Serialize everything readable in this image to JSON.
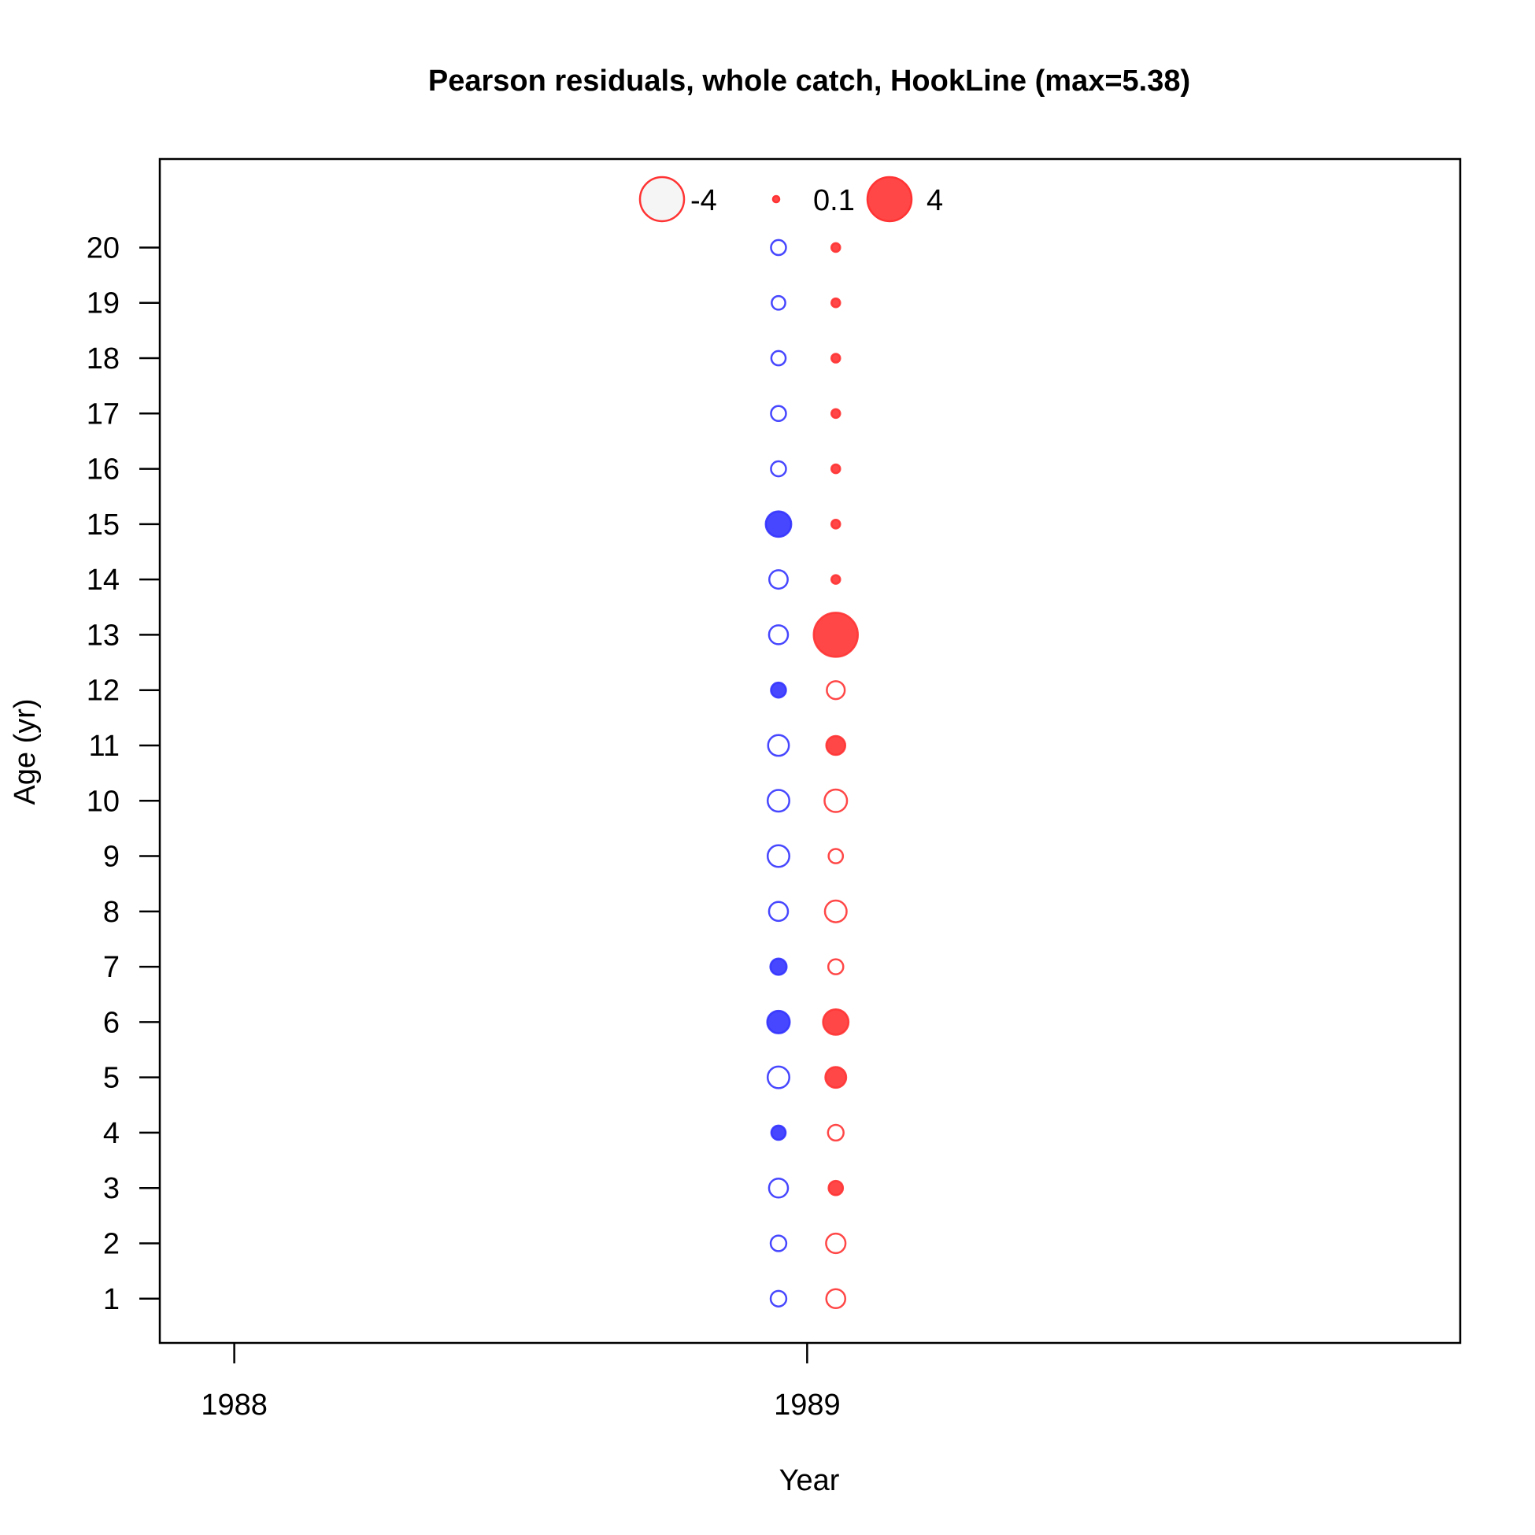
{
  "chart_data": {
    "type": "scatter",
    "subtype": "bubble",
    "title": "Pearson residuals, whole catch, HookLine (max=5.38)",
    "xlabel": "Year",
    "ylabel": "Age (yr)",
    "x_ticks": [
      "1988",
      "1989"
    ],
    "y_ticks": [
      1,
      2,
      3,
      4,
      5,
      6,
      7,
      8,
      9,
      10,
      11,
      12,
      13,
      14,
      15,
      16,
      17,
      18,
      19,
      20
    ],
    "xlim": [
      1987.87,
      1990.14
    ],
    "ylim": [
      0.2,
      21.6
    ],
    "grid": false,
    "max_residual": 5.38,
    "legend": {
      "placement": "top-center",
      "entries": [
        {
          "label": "-4",
          "value": -4,
          "filled": false,
          "color": "#ff3333"
        },
        {
          "label": "0.1",
          "value": 0.1,
          "filled": true,
          "color": "#ff3333"
        },
        {
          "label": "4",
          "value": 4,
          "filled": true,
          "color": "#ff3333"
        }
      ]
    },
    "series": [
      {
        "color": "#3333ff",
        "x": 1988.95,
        "points": [
          {
            "age": 1,
            "residual": -0.5
          },
          {
            "age": 2,
            "residual": -0.5
          },
          {
            "age": 3,
            "residual": -0.8
          },
          {
            "age": 4,
            "residual": 0.4
          },
          {
            "age": 5,
            "residual": -1.1
          },
          {
            "age": 6,
            "residual": 1.2
          },
          {
            "age": 7,
            "residual": 0.55
          },
          {
            "age": 8,
            "residual": -0.8
          },
          {
            "age": 9,
            "residual": -1.1
          },
          {
            "age": 10,
            "residual": -1.1
          },
          {
            "age": 11,
            "residual": -1.0
          },
          {
            "age": 12,
            "residual": 0.45
          },
          {
            "age": 13,
            "residual": -0.8
          },
          {
            "age": 14,
            "residual": -0.75
          },
          {
            "age": 15,
            "residual": 1.6
          },
          {
            "age": 16,
            "residual": -0.45
          },
          {
            "age": 17,
            "residual": -0.45
          },
          {
            "age": 18,
            "residual": -0.4
          },
          {
            "age": 19,
            "residual": -0.35
          },
          {
            "age": 20,
            "residual": -0.45
          }
        ]
      },
      {
        "color": "#ff3333",
        "x": 1989.05,
        "points": [
          {
            "age": 1,
            "residual": -0.8
          },
          {
            "age": 2,
            "residual": -0.85
          },
          {
            "age": 3,
            "residual": 0.4
          },
          {
            "age": 4,
            "residual": -0.5
          },
          {
            "age": 5,
            "residual": 1.0
          },
          {
            "age": 6,
            "residual": 1.6
          },
          {
            "age": 7,
            "residual": -0.45
          },
          {
            "age": 8,
            "residual": -1.1
          },
          {
            "age": 9,
            "residual": -0.4
          },
          {
            "age": 10,
            "residual": -1.2
          },
          {
            "age": 11,
            "residual": 0.8
          },
          {
            "age": 12,
            "residual": -0.7
          },
          {
            "age": 13,
            "residual": 5.38
          },
          {
            "age": 14,
            "residual": 0.1
          },
          {
            "age": 15,
            "residual": 0.1
          },
          {
            "age": 16,
            "residual": 0.1
          },
          {
            "age": 17,
            "residual": 0.1
          },
          {
            "age": 18,
            "residual": 0.1
          },
          {
            "age": 19,
            "residual": 0.1
          },
          {
            "age": 20,
            "residual": 0.1
          }
        ]
      }
    ]
  }
}
